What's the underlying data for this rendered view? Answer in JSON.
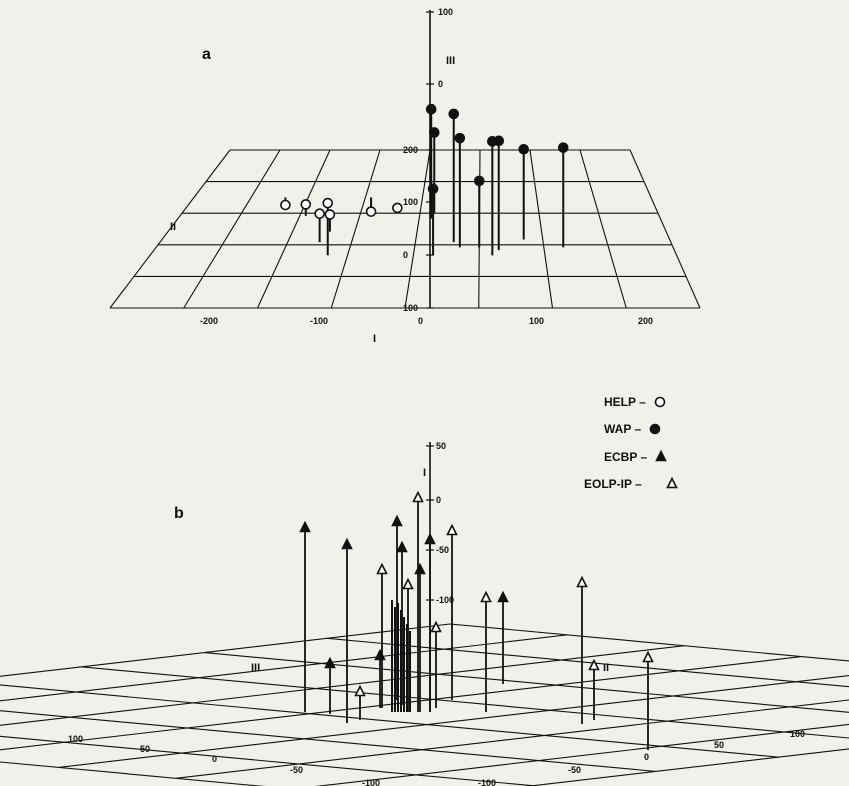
{
  "figure": {
    "panel_a_label": "a",
    "panel_b_label": "b"
  },
  "legend": [
    {
      "label": "HELP –",
      "marker": "open-circle"
    },
    {
      "label": "WAP –",
      "marker": "filled-circle"
    },
    {
      "label": "ECBP –",
      "marker": "filled-triangle"
    },
    {
      "label": "EOLP-IP –",
      "marker": "open-triangle"
    }
  ],
  "chart_data": [
    {
      "type": "scatter",
      "panel": "a",
      "projection": "3d",
      "axes": {
        "I": {
          "label": "I",
          "ticks": [
            "-200",
            "-100",
            "0",
            "100",
            "200"
          ]
        },
        "II": {
          "label": "II",
          "ticks": [
            "200",
            "100",
            "0",
            "100"
          ]
        },
        "III": {
          "label": "III",
          "ticks": [
            "100",
            "0"
          ]
        }
      },
      "series": [
        {
          "name": "HELP",
          "marker": "open-circle",
          "points": [
            {
              "I": -65,
              "II": 0,
              "III": 55
            },
            {
              "I": -75,
              "II": 25,
              "III": 30
            },
            {
              "I": -70,
              "II": 45,
              "III": 18
            },
            {
              "I": -95,
              "II": 75,
              "III": 12
            },
            {
              "I": -120,
              "II": 110,
              "III": -8
            },
            {
              "I": -20,
              "II": 90,
              "III": 0
            },
            {
              "I": -45,
              "II": 110,
              "III": -15
            }
          ]
        },
        {
          "name": "WAP",
          "marker": "filled-circle",
          "points": [
            {
              "I": 10,
              "II": 70,
              "III": 115
            },
            {
              "I": 12,
              "II": 80,
              "III": 85
            },
            {
              "I": 30,
              "II": 25,
              "III": 135
            },
            {
              "I": 35,
              "II": 15,
              "III": 115
            },
            {
              "I": 60,
              "II": 0,
              "III": 120
            },
            {
              "I": 65,
              "II": 10,
              "III": 115
            },
            {
              "I": 85,
              "II": 30,
              "III": 95
            },
            {
              "I": 115,
              "II": 15,
              "III": 105
            },
            {
              "I": 50,
              "II": 15,
              "III": 70
            },
            {
              "I": 15,
              "II": 0,
              "III": 70
            }
          ]
        }
      ]
    },
    {
      "type": "scatter",
      "panel": "b",
      "projection": "3d",
      "axes": {
        "I": {
          "label": "I",
          "ticks": [
            "50",
            "0",
            "-50",
            "-100"
          ]
        },
        "II": {
          "label": "II",
          "ticks": [
            "-100",
            "-50",
            "0",
            "50",
            "100"
          ]
        },
        "III": {
          "label": "III",
          "ticks": [
            "-100",
            "-50",
            "0",
            "50",
            "100"
          ]
        }
      },
      "series": [
        {
          "name": "ECBP",
          "marker": "filled-triangle",
          "points": [
            {
              "x": 305,
              "top": 528,
              "base": 712
            },
            {
              "x": 347,
              "top": 545,
              "base": 723
            },
            {
              "x": 397,
              "top": 522,
              "base": 700
            },
            {
              "x": 402,
              "top": 548,
              "base": 705
            },
            {
              "x": 430,
              "top": 540,
              "base": 712
            },
            {
              "x": 503,
              "top": 598,
              "base": 684
            },
            {
              "x": 330,
              "top": 664,
              "base": 714
            },
            {
              "x": 380,
              "top": 656,
              "base": 708
            },
            {
              "x": 420,
              "top": 570,
              "base": 712
            }
          ]
        },
        {
          "name": "EOLP-IP",
          "marker": "open-triangle",
          "points": [
            {
              "x": 418,
              "top": 498,
              "base": 712
            },
            {
              "x": 452,
              "top": 531,
              "base": 700
            },
            {
              "x": 408,
              "top": 585,
              "base": 712
            },
            {
              "x": 486,
              "top": 598,
              "base": 712
            },
            {
              "x": 582,
              "top": 583,
              "base": 724
            },
            {
              "x": 648,
              "top": 658,
              "base": 750
            },
            {
              "x": 594,
              "top": 666,
              "base": 720
            },
            {
              "x": 382,
              "top": 570,
              "base": 708
            },
            {
              "x": 360,
              "top": 692,
              "base": 720
            },
            {
              "x": 436,
              "top": 628,
              "base": 708
            }
          ]
        }
      ]
    }
  ]
}
